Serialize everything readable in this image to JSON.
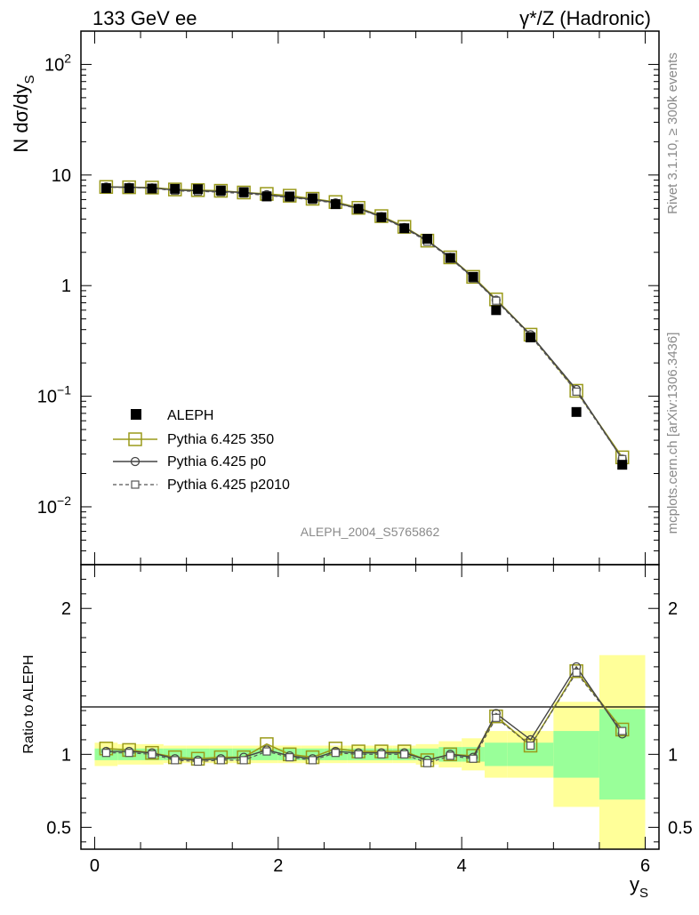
{
  "header": {
    "left_title": "133 GeV ee",
    "right_title": "γ*/Z (Hadronic)"
  },
  "side_text": {
    "rivet": "Rivet 3.1.10, ≥ 300k events",
    "mcplots": "mcplots.cern.ch [arXiv:1306.3436]"
  },
  "analysis_label": "ALEPH_2004_S5765862",
  "colors": {
    "data": "#000000",
    "mc350": "#9a9a1a",
    "p0": "#444444",
    "p2010": "#555555",
    "band_green": "#99ff99",
    "band_yellow": "#ffff99"
  },
  "chart_data": [
    {
      "type": "line",
      "panel": "main",
      "ylabel": "N dσ/dy",
      "ylabel_sub": "S",
      "ylog": true,
      "ylim": [
        0.003,
        200
      ],
      "xlim": [
        -0.15,
        6.15
      ],
      "y_tick_labels": [
        {
          "value": 100,
          "base": "10",
          "exp": "2"
        },
        {
          "value": 10,
          "base": "10",
          "exp": ""
        },
        {
          "value": 1,
          "base": "1",
          "exp": ""
        },
        {
          "value": 0.1,
          "base": "10",
          "exp": "−1"
        },
        {
          "value": 0.01,
          "base": "10",
          "exp": "−2"
        }
      ],
      "legend": "lower-left",
      "x": [
        0.125,
        0.375,
        0.625,
        0.875,
        1.125,
        1.375,
        1.625,
        1.875,
        2.125,
        2.375,
        2.625,
        2.875,
        3.125,
        3.375,
        3.625,
        3.875,
        4.125,
        4.375,
        4.75,
        5.25,
        5.75
      ],
      "series": [
        {
          "name": "ALEPH",
          "style": "data",
          "values": [
            7.6,
            7.6,
            7.55,
            7.5,
            7.45,
            7.25,
            7.0,
            6.4,
            6.4,
            6.15,
            5.45,
            4.95,
            4.15,
            3.3,
            2.65,
            1.78,
            1.2,
            0.6,
            0.34,
            0.072,
            0.024
          ]
        },
        {
          "name": "Pythia 6.425 350",
          "style": "mc350",
          "values": [
            7.8,
            7.75,
            7.7,
            7.4,
            7.3,
            7.2,
            6.95,
            6.75,
            6.5,
            6.1,
            5.7,
            5.05,
            4.25,
            3.4,
            2.55,
            1.8,
            1.2,
            0.75,
            0.36,
            0.112,
            0.028
          ]
        },
        {
          "name": "Pythia 6.425 p0",
          "style": "p0",
          "values": [
            7.8,
            7.75,
            7.65,
            7.3,
            7.2,
            7.1,
            6.95,
            6.65,
            6.3,
            6.05,
            5.6,
            5.0,
            4.2,
            3.35,
            2.55,
            1.8,
            1.18,
            0.74,
            0.36,
            0.115,
            0.027
          ]
        },
        {
          "name": "Pythia 6.425 p2010",
          "style": "p2010",
          "values": [
            7.75,
            7.7,
            7.6,
            7.2,
            7.1,
            7.0,
            6.8,
            6.55,
            6.25,
            5.95,
            5.55,
            4.95,
            4.15,
            3.3,
            2.5,
            1.77,
            1.16,
            0.73,
            0.35,
            0.11,
            0.027
          ]
        }
      ]
    },
    {
      "type": "line",
      "panel": "ratio",
      "ylabel": "Ratio to ALEPH",
      "xlabel": "y",
      "xlabel_sub": "S",
      "ylim": [
        0.35,
        2.3
      ],
      "xlim": [
        -0.15,
        6.15
      ],
      "x_ticks": [
        0,
        2,
        4,
        6
      ],
      "y_ticks": [
        0.5,
        1,
        2
      ],
      "bin_edges": [
        0,
        0.25,
        0.5,
        0.75,
        1.0,
        1.25,
        1.5,
        1.75,
        2.0,
        2.25,
        2.5,
        2.75,
        3.0,
        3.25,
        3.5,
        3.75,
        4.0,
        4.25,
        4.5,
        5.0,
        5.5,
        6.0
      ],
      "band_inner": [
        0.04,
        0.04,
        0.04,
        0.04,
        0.04,
        0.04,
        0.04,
        0.04,
        0.04,
        0.04,
        0.04,
        0.04,
        0.04,
        0.04,
        0.04,
        0.05,
        0.05,
        0.08,
        0.08,
        0.16,
        0.31
      ],
      "band_outer": [
        0.08,
        0.07,
        0.07,
        0.06,
        0.06,
        0.06,
        0.06,
        0.06,
        0.06,
        0.06,
        0.06,
        0.06,
        0.06,
        0.06,
        0.07,
        0.09,
        0.11,
        0.16,
        0.16,
        0.36,
        0.68
      ],
      "x": [
        0.125,
        0.375,
        0.625,
        0.875,
        1.125,
        1.375,
        1.625,
        1.875,
        2.125,
        2.375,
        2.625,
        2.875,
        3.125,
        3.375,
        3.625,
        3.875,
        4.125,
        4.375,
        4.75,
        5.25,
        5.75
      ],
      "series": [
        {
          "name": "Pythia 6.425 350",
          "style": "mc350",
          "values": [
            1.04,
            1.03,
            1.01,
            0.98,
            0.97,
            0.98,
            0.98,
            1.07,
            1.0,
            0.98,
            1.04,
            1.02,
            1.02,
            1.02,
            0.96,
            1.0,
            0.99,
            1.26,
            1.06,
            1.57,
            1.17
          ]
        },
        {
          "name": "Pythia 6.425 p0",
          "style": "p0",
          "values": [
            1.02,
            1.02,
            1.01,
            0.97,
            0.96,
            0.97,
            0.98,
            1.03,
            0.99,
            0.97,
            1.02,
            1.01,
            1.01,
            1.01,
            0.96,
            1.0,
            0.98,
            1.28,
            1.1,
            1.6,
            1.14
          ]
        },
        {
          "name": "Pythia 6.425 p2010",
          "style": "p2010",
          "values": [
            1.01,
            1.01,
            1.0,
            0.96,
            0.95,
            0.96,
            0.96,
            1.02,
            0.98,
            0.96,
            1.01,
            1.0,
            1.0,
            1.0,
            0.94,
            0.99,
            0.97,
            1.25,
            1.06,
            1.56,
            1.16
          ]
        }
      ]
    }
  ]
}
